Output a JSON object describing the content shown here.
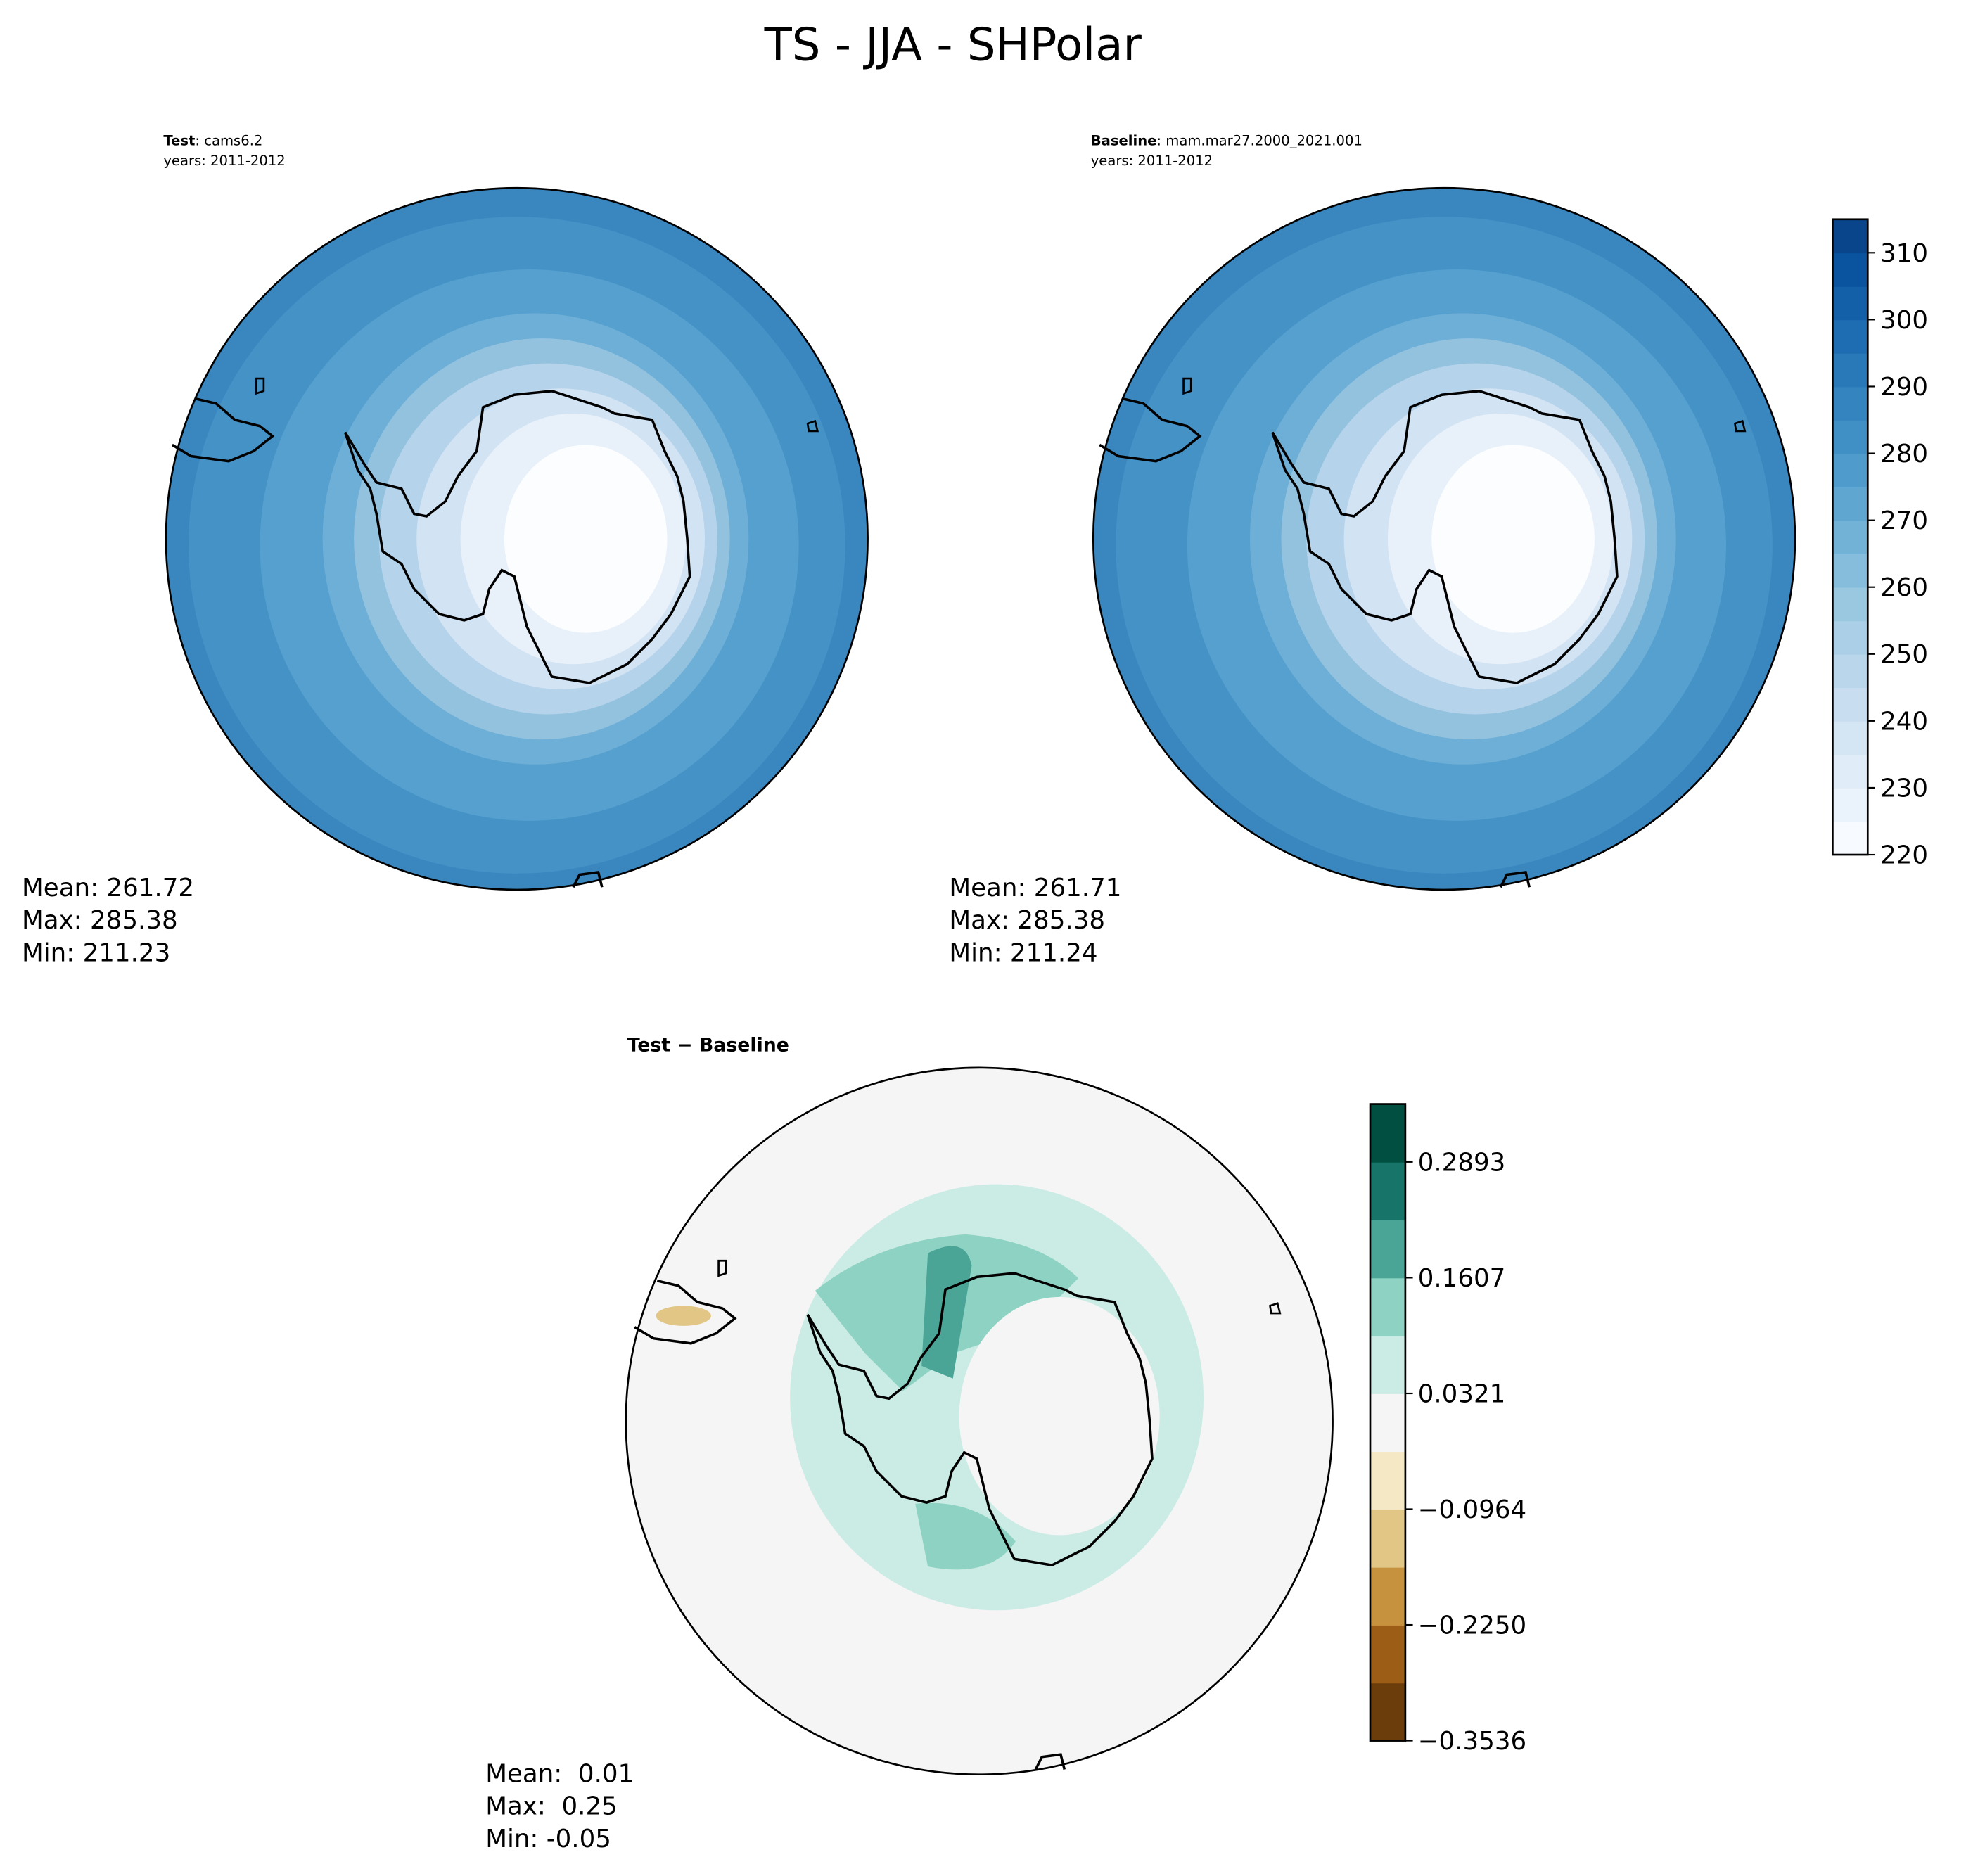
{
  "figure": {
    "title": "TS - JJA - SHPolar",
    "panels": [
      {
        "label": "Test",
        "name": ": cams6.2",
        "years": "years: 2011-2012",
        "stats": [
          "Mean: 261.72",
          "Max: 285.38",
          "Min: 211.23"
        ]
      },
      {
        "label": "Baseline",
        "name": ": mam.mar27.2000_2021.001",
        "years": "years: 2011-2012",
        "stats": [
          "Mean: 261.71",
          "Max: 285.38",
          "Min: 211.24"
        ]
      },
      {
        "label": "Test − Baseline",
        "stats": [
          "Mean:  0.01",
          "Max:  0.25",
          "Min: -0.05"
        ]
      }
    ],
    "colorbars": [
      {
        "lim": [
          220,
          315
        ],
        "ticks": [
          220,
          230,
          240,
          250,
          260,
          270,
          280,
          290,
          300,
          310
        ],
        "colors": [
          "#f7fbff",
          "#eaf3fb",
          "#e0ecf8",
          "#d4e5f4",
          "#c9ddf0",
          "#bad6eb",
          "#abcfe6",
          "#9ac8e0",
          "#87bddc",
          "#72b2d7",
          "#5fa6d1",
          "#4f9bcb",
          "#4090c5",
          "#3484bf",
          "#2979b9",
          "#1e6db2",
          "#1460a8",
          "#0a539e",
          "#08458a"
        ]
      },
      {
        "lim": [
          -0.3536,
          0.3536
        ],
        "ticks": [
          {
            "value": -0.3536,
            "label": "−0.3536"
          },
          {
            "value": -0.225,
            "label": "−0.2250"
          },
          {
            "value": -0.0964,
            "label": "−0.0964"
          },
          0.0321,
          0.1607,
          0.2893
        ],
        "colors": [
          "#6a3d0a",
          "#9c5e16",
          "#c7923e",
          "#e2c685",
          "#f5e8c4",
          "#f4f5f4",
          "#cbebe5",
          "#8dd2c2",
          "#4aa597",
          "#167568",
          "#014f40"
        ]
      }
    ]
  }
}
